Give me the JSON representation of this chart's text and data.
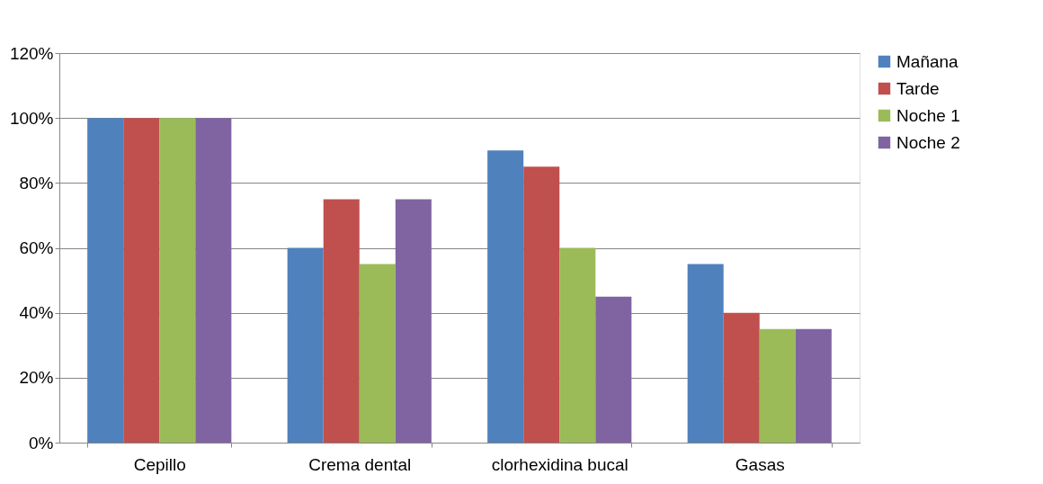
{
  "chart_data": {
    "type": "bar",
    "categories": [
      "Cepillo",
      "Crema dental",
      "clorhexidina bucal",
      "Gasas"
    ],
    "series": [
      {
        "name": "Mañana",
        "color": "#4f81bd",
        "values": [
          100,
          60,
          90,
          55
        ]
      },
      {
        "name": "Tarde",
        "color": "#c0504d",
        "values": [
          100,
          75,
          85,
          40
        ]
      },
      {
        "name": "Noche 1",
        "color": "#9bbb59",
        "values": [
          100,
          55,
          60,
          35
        ]
      },
      {
        "name": "Noche 2",
        "color": "#8064a2",
        "values": [
          100,
          75,
          45,
          35
        ]
      }
    ],
    "ylim": [
      0,
      120
    ],
    "yticks": [
      {
        "value": 0,
        "label": "0%"
      },
      {
        "value": 20,
        "label": "20%"
      },
      {
        "value": 40,
        "label": "40%"
      },
      {
        "value": 60,
        "label": "60%"
      },
      {
        "value": 80,
        "label": "80%"
      },
      {
        "value": 100,
        "label": "100%"
      },
      {
        "value": 120,
        "label": "120%"
      }
    ],
    "grid": "y",
    "legend": "right"
  }
}
